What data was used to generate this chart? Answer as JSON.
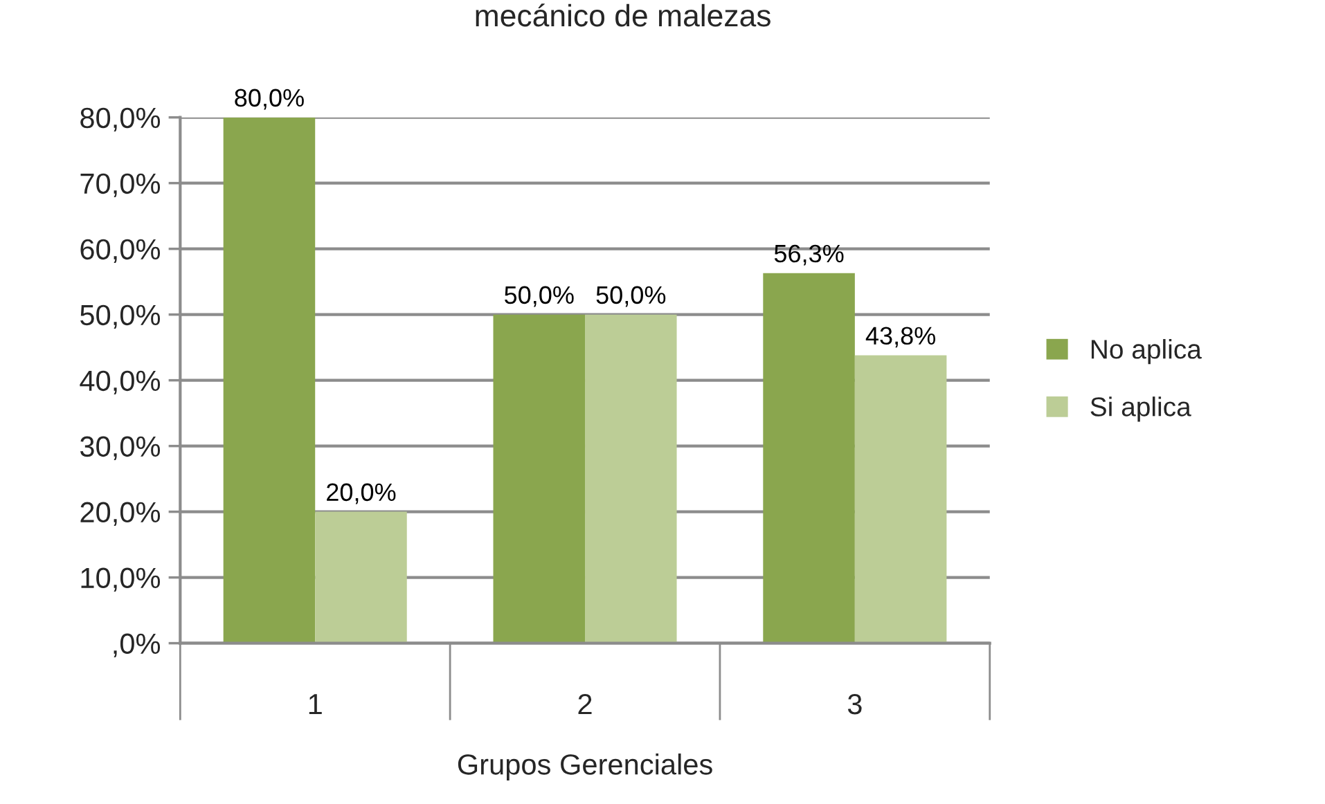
{
  "chart_data": {
    "type": "bar",
    "title": "mecánico de malezas",
    "xlabel": "Grupos Gerenciales",
    "categories": [
      "1",
      "2",
      "3"
    ],
    "series": [
      {
        "name": "No aplica",
        "color": "#8aa64e",
        "values": [
          80.0,
          50.0,
          56.3
        ],
        "value_labels": [
          "80,0%",
          "50,0%",
          "56,3%"
        ]
      },
      {
        "name": "Si aplica",
        "color": "#bccd96",
        "values": [
          20.0,
          50.0,
          43.8
        ],
        "value_labels": [
          "20,0%",
          "50,0%",
          "43,8%"
        ]
      }
    ],
    "ylim": [
      0,
      80
    ],
    "yticks": [
      {
        "value": 0,
        "label": ",0%"
      },
      {
        "value": 10,
        "label": "10,0%"
      },
      {
        "value": 20,
        "label": "20,0%"
      },
      {
        "value": 30,
        "label": "30,0%"
      },
      {
        "value": 40,
        "label": "40,0%"
      },
      {
        "value": 50,
        "label": "50,0%"
      },
      {
        "value": 60,
        "label": "60,0%"
      },
      {
        "value": 70,
        "label": "70,0%"
      },
      {
        "value": 80,
        "label": "80,0%"
      }
    ],
    "grid": "y",
    "legend": "right"
  }
}
